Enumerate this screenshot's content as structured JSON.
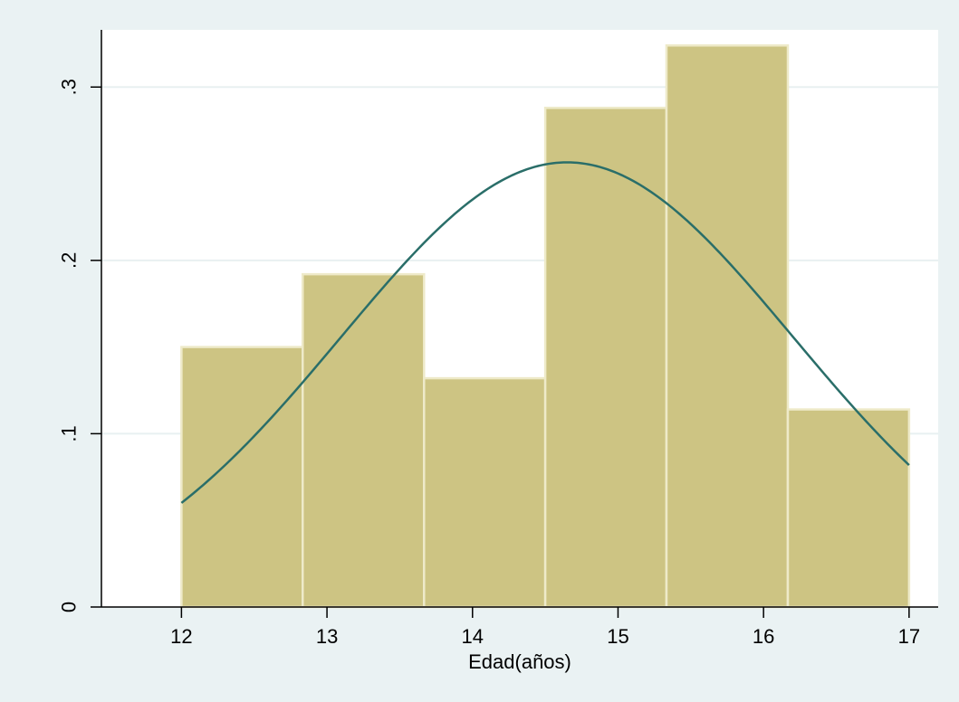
{
  "chart_data": {
    "type": "bar",
    "subtype": "histogram",
    "title": "",
    "xlabel": "Edad(años)",
    "ylabel": "",
    "xlim": [
      11.45,
      17.2
    ],
    "ylim": [
      0,
      0.333
    ],
    "x_ticks": [
      {
        "value": 12,
        "label": "12"
      },
      {
        "value": 13,
        "label": "13"
      },
      {
        "value": 14,
        "label": "14"
      },
      {
        "value": 15,
        "label": "15"
      },
      {
        "value": 16,
        "label": "16"
      },
      {
        "value": 17,
        "label": "17"
      }
    ],
    "y_ticks": [
      {
        "value": 0,
        "label": "0"
      },
      {
        "value": 0.1,
        "label": ".1"
      },
      {
        "value": 0.2,
        "label": ".2"
      },
      {
        "value": 0.3,
        "label": ".3"
      }
    ],
    "bins": [
      {
        "start": 12.0,
        "end": 12.833,
        "value": 0.15
      },
      {
        "start": 12.833,
        "end": 13.667,
        "value": 0.192
      },
      {
        "start": 13.667,
        "end": 14.5,
        "value": 0.132
      },
      {
        "start": 14.5,
        "end": 15.333,
        "value": 0.288
      },
      {
        "start": 15.333,
        "end": 16.167,
        "value": 0.324
      },
      {
        "start": 16.167,
        "end": 17.0,
        "value": 0.114
      }
    ],
    "overlay": {
      "type": "normal-density",
      "mean": 14.65,
      "sd": 1.555,
      "x_range": [
        12,
        17
      ]
    },
    "grid": true,
    "legend": "none"
  },
  "colors": {
    "background": "#eaf2f3",
    "plot_background": "#ffffff",
    "bar_fill": "#cdc483",
    "bar_edge": "#eeeac9",
    "curve": "#2a6e69",
    "grid": "#e8f0f1",
    "axis": "#000000"
  }
}
